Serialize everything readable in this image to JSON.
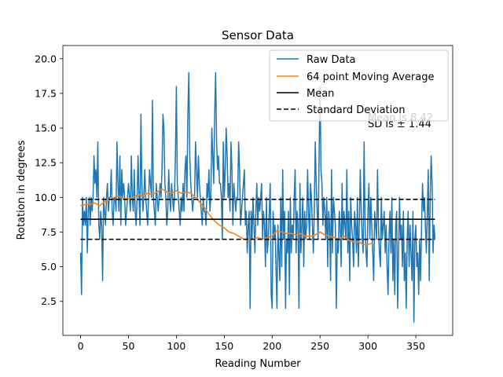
{
  "chart_data": {
    "type": "line",
    "title": "Sensor Data",
    "xlabel": "Reading Number",
    "ylabel": "Rotation in degrees",
    "xlim": [
      -18.5,
      388.5
    ],
    "ylim": [
      0.05,
      20.95
    ],
    "xticks": [
      0,
      50,
      100,
      150,
      200,
      250,
      300,
      350
    ],
    "yticks": [
      2.5,
      5.0,
      7.5,
      10.0,
      12.5,
      15.0,
      17.5,
      20.0
    ],
    "xtick_labels": [
      "0",
      "50",
      "100",
      "150",
      "200",
      "250",
      "300",
      "350"
    ],
    "ytick_labels": [
      "2.5",
      "5.0",
      "7.5",
      "10.0",
      "12.5",
      "15.0",
      "17.5",
      "20.0"
    ],
    "grid": false,
    "legend_position": "top-right",
    "series": [
      {
        "name": "Raw Data",
        "color": "#1f77b4",
        "style": "solid",
        "x_start": 0,
        "x_step": 1,
        "values": [
          6,
          3,
          10,
          8,
          9,
          8,
          10,
          6,
          9,
          10,
          8,
          10,
          9,
          10,
          13,
          11,
          12,
          10,
          14,
          8,
          7,
          9,
          8,
          4,
          10,
          9,
          8,
          10,
          11,
          9,
          10,
          10,
          12,
          9,
          8,
          10,
          10,
          9,
          14,
          11,
          9,
          13,
          8,
          12,
          10,
          11,
          10,
          8,
          9,
          10,
          11,
          10,
          9,
          13,
          10,
          9,
          12,
          9,
          8,
          10,
          13,
          10,
          8,
          16,
          11,
          9,
          10,
          12,
          10,
          9,
          8,
          10,
          12,
          11,
          10,
          17,
          10,
          9,
          8,
          11,
          10,
          9,
          10,
          11,
          10,
          12,
          16,
          15,
          11,
          10,
          8,
          9,
          12,
          10,
          9,
          11,
          10,
          9,
          10,
          13,
          18,
          11,
          10,
          9,
          8,
          10,
          9,
          11,
          9,
          12,
          13,
          10,
          16,
          19,
          13,
          11,
          10,
          9,
          10,
          10,
          14,
          12,
          10,
          13,
          11,
          10,
          9,
          8,
          10,
          9,
          9,
          8,
          11,
          10,
          12,
          9,
          10,
          15,
          13,
          11,
          16,
          19,
          14,
          12,
          13,
          11,
          11,
          10,
          7,
          14,
          10,
          12,
          15,
          13,
          10,
          11,
          9,
          14,
          12,
          8,
          11,
          10,
          9,
          10,
          10,
          14,
          12,
          8,
          9,
          10,
          11,
          12,
          8,
          9,
          6,
          8,
          9,
          2,
          9,
          7,
          10,
          8,
          6,
          9,
          11,
          8,
          10,
          9,
          10,
          11,
          7,
          9,
          8,
          5,
          10,
          6,
          7,
          9,
          11,
          3,
          2,
          9,
          7,
          8,
          5,
          2,
          8,
          6,
          4,
          10,
          5,
          12,
          7,
          9,
          2,
          7,
          6,
          9,
          3,
          10,
          6,
          8,
          7,
          10,
          12,
          6,
          9,
          8,
          2,
          11,
          6,
          8,
          10,
          5,
          9,
          7,
          8,
          12,
          9,
          7,
          11,
          10,
          8,
          6,
          9,
          14,
          11,
          9,
          7,
          13,
          18,
          12,
          11,
          8,
          10,
          9,
          7,
          10,
          5,
          9,
          8,
          4,
          12,
          6,
          10,
          9,
          8,
          2,
          7,
          6,
          9,
          8,
          5,
          11,
          7,
          9,
          8,
          7,
          12,
          6,
          9,
          4,
          10,
          8,
          7,
          5,
          9,
          8,
          6,
          10,
          5,
          8,
          12,
          9,
          7,
          6,
          14,
          8,
          6,
          5,
          9,
          11,
          7,
          10,
          8,
          6,
          4,
          9,
          8,
          7,
          12,
          8,
          6,
          5,
          10,
          7,
          8,
          9,
          6,
          8,
          5,
          3,
          7,
          9,
          6,
          10,
          4,
          7,
          3,
          8,
          9,
          2,
          6,
          10,
          7,
          8,
          5,
          9,
          4,
          6,
          2,
          7,
          9,
          5,
          8,
          6,
          4,
          9,
          1,
          7,
          8,
          5,
          6,
          3,
          7,
          4,
          8,
          11,
          9,
          10,
          8,
          6,
          9,
          12,
          4,
          10,
          13,
          11,
          6,
          8,
          7
        ]
      },
      {
        "name": "64 point Moving Average",
        "color": "#ff7f0e",
        "style": "solid",
        "x": [
          0,
          5,
          10,
          15,
          20,
          25,
          30,
          35,
          40,
          45,
          50,
          55,
          60,
          65,
          70,
          75,
          80,
          85,
          90,
          95,
          100,
          105,
          110,
          115,
          120,
          125,
          130,
          135,
          140,
          145,
          150,
          155,
          160,
          165,
          170,
          175,
          180,
          185,
          190,
          195,
          200,
          205,
          210,
          215,
          220,
          225,
          230,
          235,
          240,
          245,
          250,
          255,
          260,
          265,
          270,
          275,
          280,
          285,
          290,
          295,
          300,
          305
        ],
        "values": [
          9.4,
          9.5,
          9.5,
          9.6,
          9.4,
          9.7,
          9.8,
          10.0,
          10.1,
          9.9,
          9.9,
          10.0,
          10.2,
          10.1,
          10.3,
          10.2,
          10.4,
          10.6,
          10.4,
          10.3,
          10.5,
          10.3,
          10.4,
          10.3,
          10.0,
          9.6,
          9.2,
          8.7,
          8.3,
          8.0,
          7.8,
          7.5,
          7.4,
          7.2,
          7.0,
          6.9,
          7.0,
          7.1,
          7.0,
          7.1,
          7.2,
          7.6,
          7.5,
          7.4,
          7.4,
          7.3,
          7.4,
          7.2,
          7.2,
          7.3,
          7.5,
          7.3,
          7.2,
          7.1,
          7.0,
          7.2,
          6.9,
          6.8,
          6.8,
          6.6,
          6.6,
          6.7
        ]
      },
      {
        "name": "Mean",
        "color": "#000000",
        "style": "solid",
        "x": [
          0,
          370
        ],
        "values": [
          8.42,
          8.42
        ]
      },
      {
        "name": "Standard Deviation",
        "color": "#000000",
        "style": "dashed",
        "x": [
          0,
          370
        ],
        "upper": 9.86,
        "lower": 6.98
      }
    ],
    "annotations": [
      "Mean is 8.42",
      "SD is ± 1.44"
    ]
  }
}
